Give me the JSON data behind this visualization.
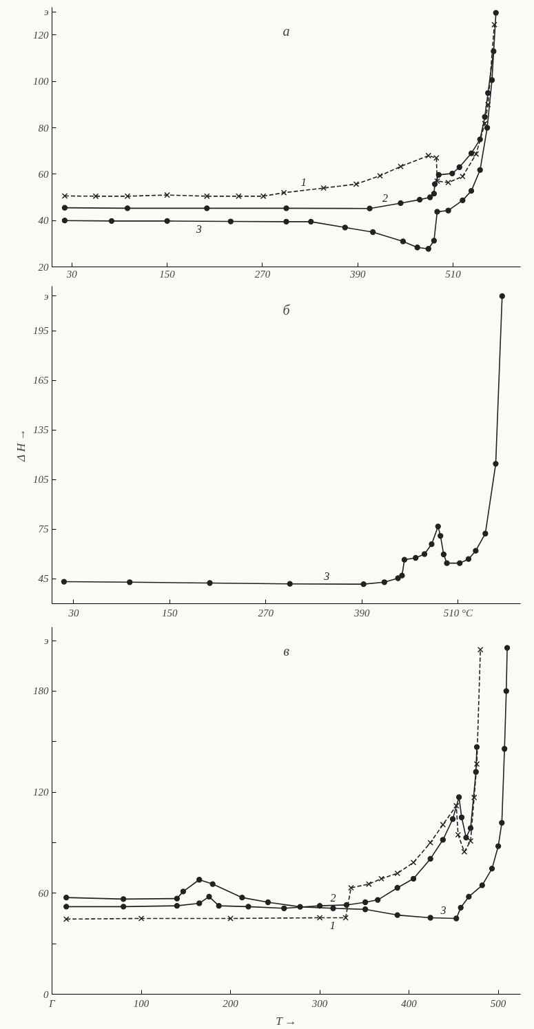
{
  "chart_data": [
    {
      "type": "line",
      "title": "а",
      "xlim": [
        5,
        595
      ],
      "ylim": [
        20,
        132
      ],
      "xticks": [
        30,
        150,
        270,
        390,
        510
      ],
      "yticks": [
        20,
        40,
        60,
        80,
        100,
        120,
        {
          "value": 130,
          "label": "э"
        }
      ],
      "series": [
        {
          "name": "1",
          "color": "#222222",
          "marker": "cross",
          "line_style": "dashed",
          "x": [
            21,
            60,
            100,
            150,
            200,
            240,
            271,
            297,
            347,
            388,
            418,
            444,
            479,
            489,
            490,
            504,
            522,
            539,
            550,
            554,
            562
          ],
          "values": [
            50.6,
            50.5,
            50.5,
            51,
            50.5,
            50.5,
            50.5,
            52,
            54,
            55.7,
            59.3,
            63.3,
            68,
            67,
            57,
            56.4,
            59,
            68.7,
            81.8,
            90,
            124.5
          ]
        },
        {
          "name": "2",
          "color": "#222222",
          "marker": "circle",
          "x": [
            21,
            100,
            200,
            300,
            405,
            444,
            468,
            481,
            486,
            487,
            492,
            509,
            518,
            533,
            544,
            550,
            554,
            561
          ],
          "values": [
            45.5,
            45.3,
            45.3,
            45.3,
            45.2,
            47.5,
            49,
            50,
            51.6,
            55.7,
            59.7,
            60.3,
            63,
            69,
            75,
            84.7,
            95,
            113
          ]
        },
        {
          "name": "3",
          "color": "#222222",
          "marker": "circle",
          "x": [
            21,
            80,
            150,
            230,
            300,
            331,
            374,
            409,
            447,
            465,
            479,
            486,
            490,
            504,
            522,
            533,
            544,
            553,
            559,
            564
          ],
          "values": [
            40,
            39.8,
            39.8,
            39.6,
            39.5,
            39.5,
            37,
            35,
            31,
            28.4,
            27.8,
            31.3,
            43.8,
            44.3,
            48.7,
            52.8,
            61.8,
            80,
            100.6,
            129.6
          ]
        }
      ]
    },
    {
      "type": "line",
      "title": "б",
      "ylabel": "Δ H →",
      "xlim": [
        3,
        588
      ],
      "ylim": [
        30,
        222
      ],
      "xticks": [
        30,
        150,
        270,
        390,
        {
          "value": 510,
          "label": "510 °C"
        }
      ],
      "yticks": [
        45,
        75,
        105,
        135,
        165,
        195,
        {
          "value": 216,
          "label": "э"
        }
      ],
      "series": [
        {
          "name": "3",
          "color": "#222222",
          "marker": "circle",
          "x": [
            18,
            100,
            200,
            300,
            392,
            418,
            435,
            440,
            443,
            457,
            468,
            477,
            485,
            488,
            492,
            496,
            512,
            523,
            532,
            544,
            557,
            565
          ],
          "values": [
            43.3,
            43,
            42.5,
            42,
            41.8,
            43,
            45.4,
            47,
            56.6,
            57.7,
            60,
            66,
            76.7,
            71,
            59.8,
            54.5,
            54.5,
            57,
            62,
            72.4,
            114.6,
            216
          ]
        }
      ]
    },
    {
      "type": "line",
      "title": "в",
      "xlabel": "T →",
      "xlim": [
        0,
        525
      ],
      "ylim": [
        0,
        218
      ],
      "xticks": [
        {
          "value": 0,
          "label": "Г"
        },
        100,
        200,
        300,
        400,
        500
      ],
      "yticks": [
        0,
        {
          "value": 30,
          "label": null
        },
        60,
        {
          "value": 90,
          "label": null
        },
        120,
        {
          "value": 150,
          "label": null
        },
        180,
        {
          "value": 210,
          "label": "э"
        }
      ],
      "series": [
        {
          "name": "1",
          "color": "#222222",
          "marker": "cross",
          "line_style": "dashed",
          "x": [
            16,
            100,
            200,
            300,
            329,
            335,
            355,
            369,
            387,
            405,
            424,
            438,
            453,
            455,
            462,
            469,
            473,
            476,
            480
          ],
          "values": [
            44.6,
            45,
            45,
            45.4,
            45.4,
            63.2,
            65.4,
            68.6,
            71.8,
            78.2,
            90,
            100.7,
            111.9,
            94.7,
            84.6,
            91,
            116.8,
            136.7,
            204.6
          ]
        },
        {
          "name": "2",
          "color": "#222222",
          "marker": "circle",
          "x": [
            16,
            80,
            140,
            165,
            176,
            187,
            220,
            260,
            300,
            330,
            351,
            365,
            387,
            405,
            424,
            438,
            449,
            456,
            459,
            464,
            469,
            475,
            476
          ],
          "values": [
            52,
            52,
            52.5,
            54,
            57.9,
            52.5,
            52,
            51,
            52.5,
            53,
            54.6,
            56,
            63.2,
            68.6,
            80.4,
            91.7,
            104,
            117,
            105,
            93,
            98.6,
            132,
            146.8
          ]
        },
        {
          "name": "3",
          "color": "#222222",
          "marker": "circle",
          "x": [
            16,
            80,
            140,
            147,
            165,
            180,
            213,
            242,
            278,
            315,
            351,
            387,
            424,
            453,
            458,
            467,
            482,
            493,
            500,
            504,
            507,
            509,
            510
          ],
          "values": [
            57.4,
            56.5,
            56.8,
            61,
            68,
            65.4,
            57.4,
            54.6,
            51.9,
            51,
            50.4,
            47,
            45.4,
            45,
            51.4,
            57.9,
            64.7,
            74.6,
            87.9,
            101.8,
            145.7,
            180,
            205.7
          ]
        }
      ]
    }
  ]
}
